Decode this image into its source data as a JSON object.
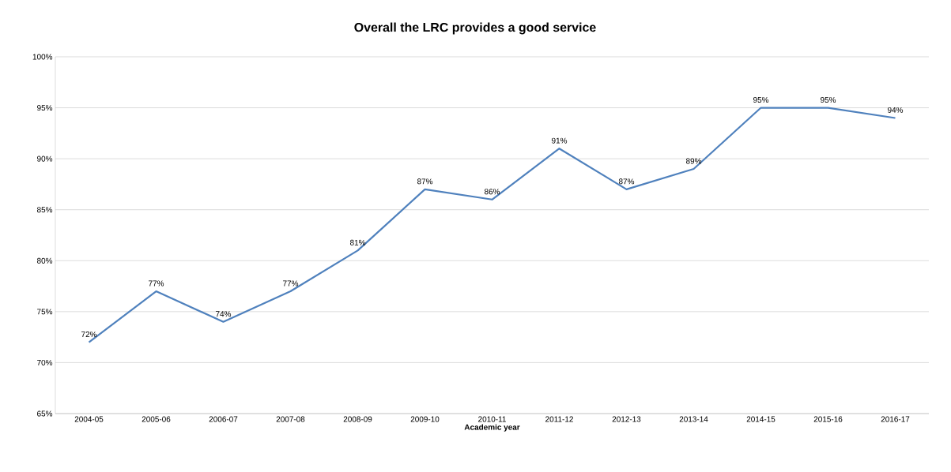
{
  "chart_data": {
    "type": "line",
    "title": "Overall the LRC provides a good service",
    "xlabel": "Academic year",
    "categories": [
      "2004-05",
      "2005-06",
      "2006-07",
      "2007-08",
      "2008-09",
      "2009-10",
      "2010-11",
      "2011-12",
      "2012-13",
      "2013-14",
      "2014-15",
      "2015-16",
      "2016-17"
    ],
    "values": [
      72,
      77,
      74,
      77,
      81,
      87,
      86,
      91,
      87,
      89,
      95,
      95,
      94
    ],
    "value_labels": [
      "72%",
      "77%",
      "74%",
      "77%",
      "81%",
      "87%",
      "86%",
      "91%",
      "87%",
      "89%",
      "95%",
      "95%",
      "94%"
    ],
    "color": "#4f81bd",
    "ylim": [
      65,
      100
    ],
    "yticks": [
      {
        "value": 65,
        "label": "65%"
      },
      {
        "value": 70,
        "label": "70%"
      },
      {
        "value": 75,
        "label": "75%"
      },
      {
        "value": 80,
        "label": "80%"
      },
      {
        "value": 85,
        "label": "85%"
      },
      {
        "value": 90,
        "label": "90%"
      },
      {
        "value": 95,
        "label": "95%"
      },
      {
        "value": 100,
        "label": "100%"
      }
    ],
    "grid": "y"
  }
}
